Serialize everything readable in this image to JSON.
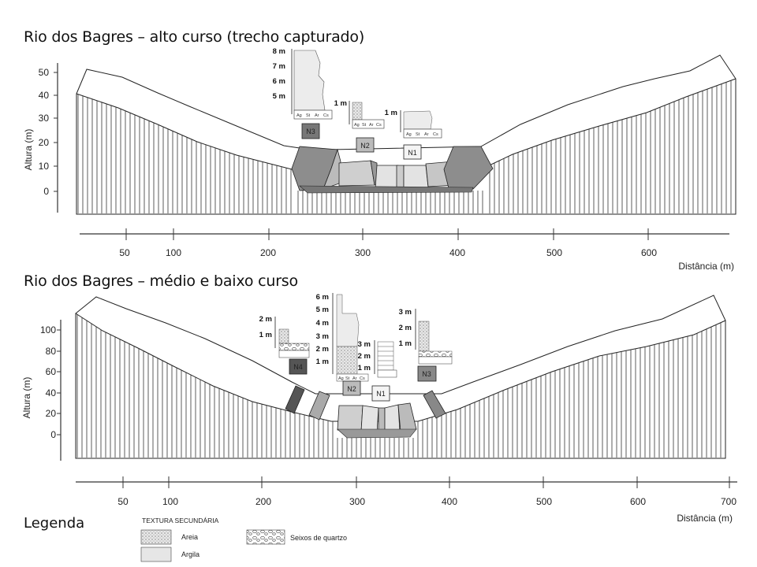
{
  "titles": {
    "upper": "Rio dos Bagres – alto curso (trecho capturado)",
    "lower": "Rio dos Bagres – médio e baixo curso",
    "legend": "Legenda"
  },
  "upper": {
    "y_axis_label": "Altura (m)",
    "y_ticks": [
      "50",
      "40",
      "30",
      "20",
      "10",
      "0"
    ],
    "x_axis_label": "Distância (m)",
    "x_ticks": [
      "50",
      "100",
      "200",
      "300",
      "400",
      "500",
      "600"
    ],
    "terraces": [
      "N3",
      "N2",
      "N1"
    ],
    "section_scale": [
      "8 m",
      "7 m",
      "6 m",
      "5 m"
    ],
    "n2_scale": "1 m",
    "n1_scale": "1 m",
    "grain_cols": [
      "Ag",
      "St",
      "Ar",
      "Cs"
    ]
  },
  "lower": {
    "y_axis_label": "Altura (m)",
    "y_ticks": [
      "100",
      "80",
      "60",
      "40",
      "20",
      "0"
    ],
    "x_axis_label": "Distância (m)",
    "x_ticks": [
      "50",
      "100",
      "200",
      "300",
      "400",
      "500",
      "600",
      "700"
    ],
    "terraces": [
      "N4",
      "N2",
      "N1",
      "N3"
    ],
    "n4_scale": [
      "2 m",
      "1 m"
    ],
    "n2_scale": [
      "6 m",
      "5 m",
      "4 m",
      "3 m",
      "2 m",
      "1 m"
    ],
    "n1_scale": [
      "3 m",
      "2 m",
      "1 m"
    ],
    "n3_scale": [
      "3 m",
      "2 m",
      "1 m"
    ],
    "grain_cols": [
      "Ag",
      "St",
      "Ar",
      "Cs"
    ]
  },
  "legend": {
    "heading": "TEXTURA SECUNDÁRIA",
    "items": [
      {
        "label": "Areia",
        "pattern": "sand"
      },
      {
        "label": "Argila",
        "pattern": "clay"
      },
      {
        "label": "Seixos de quartzo",
        "pattern": "pebbles"
      }
    ]
  }
}
